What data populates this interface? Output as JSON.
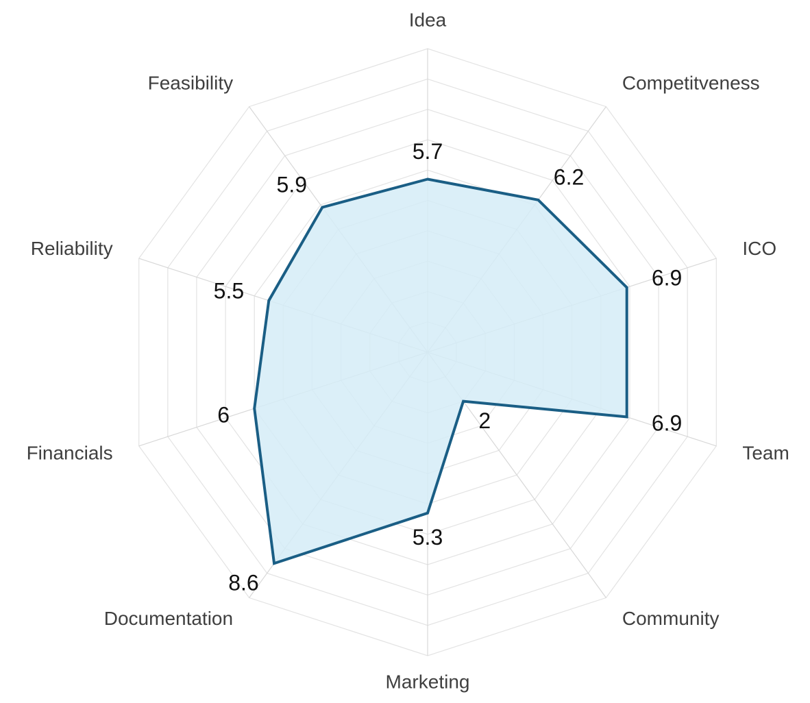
{
  "chart_data": {
    "type": "radar",
    "categories": [
      "Idea",
      "Competitveness",
      "ICO",
      "Team",
      "Community",
      "Marketing",
      "Documentation",
      "Financials",
      "Reliability",
      "Feasibility"
    ],
    "series": [
      {
        "values": [
          5.7,
          6.2,
          6.9,
          6.9,
          2,
          5.3,
          8.6,
          6,
          5.5,
          5.9
        ],
        "data_labels": [
          "5.7",
          "6.2",
          "6.9",
          "6.9",
          "2",
          "5.3",
          "8.6",
          "6",
          "5.5",
          "5.9"
        ]
      }
    ],
    "rlim": [
      0,
      10
    ],
    "grid_rings": 10,
    "grid": true,
    "legend": "none",
    "colors": {
      "line": "#1a5e85",
      "fill": "#d5ecf7",
      "grid": "#e3e3e3",
      "axis_label": "#3f3f3f",
      "data_label": "#111111"
    }
  }
}
